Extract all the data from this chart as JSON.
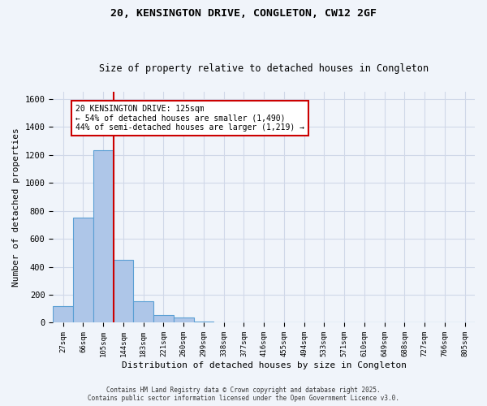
{
  "title1": "20, KENSINGTON DRIVE, CONGLETON, CW12 2GF",
  "title2": "Size of property relative to detached houses in Congleton",
  "xlabel": "Distribution of detached houses by size in Congleton",
  "ylabel": "Number of detached properties",
  "footnote1": "Contains HM Land Registry data © Crown copyright and database right 2025.",
  "footnote2": "Contains public sector information licensed under the Open Government Licence v3.0.",
  "bar_labels": [
    "27sqm",
    "66sqm",
    "105sqm",
    "144sqm",
    "183sqm",
    "221sqm",
    "260sqm",
    "299sqm",
    "338sqm",
    "377sqm",
    "416sqm",
    "455sqm",
    "494sqm",
    "533sqm",
    "571sqm",
    "610sqm",
    "649sqm",
    "688sqm",
    "727sqm",
    "766sqm",
    "805sqm"
  ],
  "bar_values": [
    120,
    750,
    1230,
    450,
    155,
    55,
    35,
    10,
    0,
    0,
    0,
    0,
    0,
    0,
    0,
    0,
    0,
    0,
    0,
    0,
    0
  ],
  "bar_color": "#aec6e8",
  "bar_edgecolor": "#5a9fd4",
  "grid_color": "#d0d8e8",
  "bg_color": "#f0f4fa",
  "red_line_x": 2.5,
  "annotation_text": "20 KENSINGTON DRIVE: 125sqm\n← 54% of detached houses are smaller (1,490)\n44% of semi-detached houses are larger (1,219) →",
  "annotation_box_color": "#ffffff",
  "annotation_box_edgecolor": "#cc0000",
  "ylim": [
    0,
    1650
  ],
  "yticks": [
    0,
    200,
    400,
    600,
    800,
    1000,
    1200,
    1400,
    1600
  ]
}
